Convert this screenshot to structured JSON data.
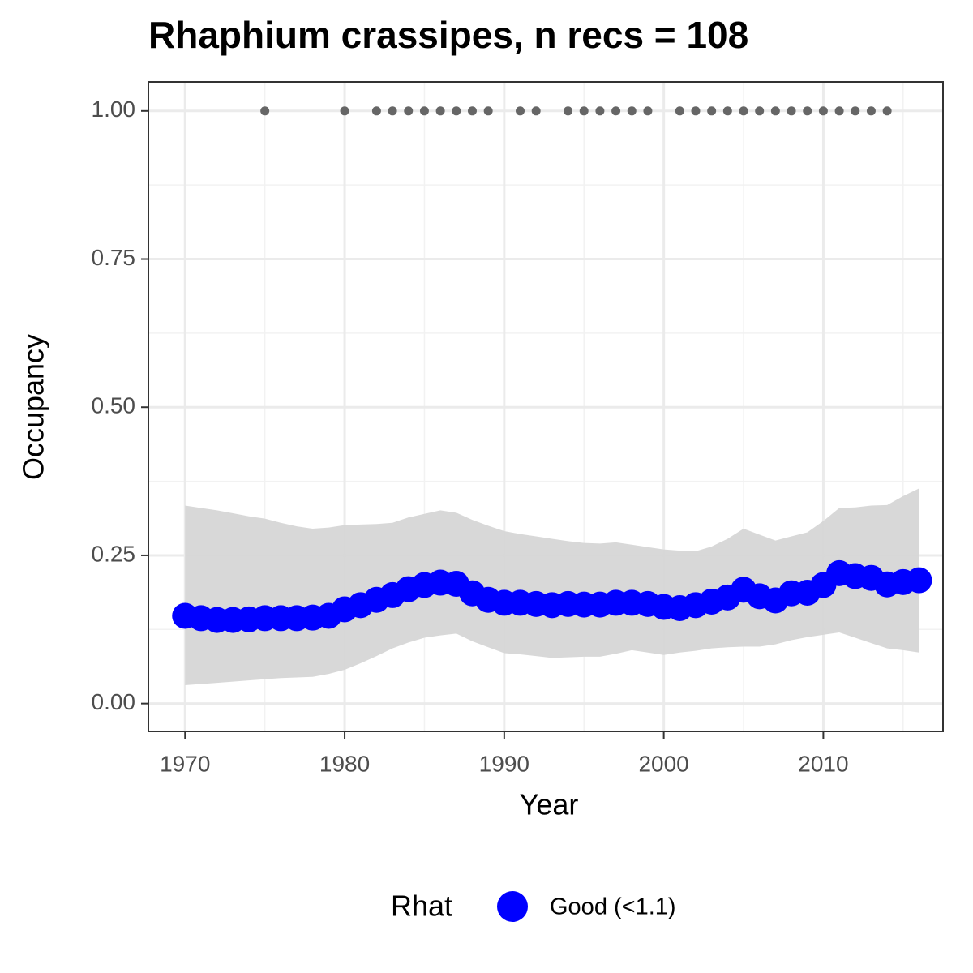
{
  "chart_data": {
    "type": "line",
    "title": "Rhaphium crassipes, n recs = 108",
    "x_label": "Year",
    "y_label": "Occupancy",
    "x": [
      1970,
      1971,
      1972,
      1973,
      1974,
      1975,
      1976,
      1977,
      1978,
      1979,
      1980,
      1981,
      1982,
      1983,
      1984,
      1985,
      1986,
      1987,
      1988,
      1989,
      1990,
      1991,
      1992,
      1993,
      1994,
      1995,
      1996,
      1997,
      1998,
      1999,
      2000,
      2001,
      2002,
      2003,
      2004,
      2005,
      2006,
      2007,
      2008,
      2009,
      2010,
      2011,
      2012,
      2013,
      2014,
      2015,
      2016
    ],
    "series": [
      {
        "name": "Good (<1.1)",
        "color": "#0000ff",
        "values": [
          0.148,
          0.144,
          0.141,
          0.141,
          0.142,
          0.144,
          0.144,
          0.144,
          0.145,
          0.148,
          0.159,
          0.166,
          0.175,
          0.183,
          0.193,
          0.2,
          0.204,
          0.202,
          0.186,
          0.175,
          0.17,
          0.17,
          0.168,
          0.166,
          0.168,
          0.167,
          0.167,
          0.17,
          0.17,
          0.168,
          0.163,
          0.161,
          0.166,
          0.172,
          0.179,
          0.192,
          0.181,
          0.174,
          0.186,
          0.187,
          0.2,
          0.22,
          0.215,
          0.212,
          0.201,
          0.205,
          0.208
        ]
      }
    ],
    "band": {
      "color": "#d6d6d6",
      "upper": [
        0.334,
        0.33,
        0.326,
        0.321,
        0.316,
        0.312,
        0.305,
        0.299,
        0.295,
        0.297,
        0.301,
        0.302,
        0.303,
        0.305,
        0.314,
        0.32,
        0.326,
        0.322,
        0.31,
        0.3,
        0.291,
        0.286,
        0.282,
        0.278,
        0.274,
        0.271,
        0.27,
        0.272,
        0.268,
        0.264,
        0.26,
        0.258,
        0.257,
        0.265,
        0.278,
        0.295,
        0.285,
        0.275,
        0.282,
        0.289,
        0.308,
        0.33,
        0.331,
        0.334,
        0.335,
        0.35,
        0.363
      ],
      "lower": [
        0.031,
        0.033,
        0.035,
        0.037,
        0.039,
        0.041,
        0.043,
        0.044,
        0.045,
        0.05,
        0.057,
        0.068,
        0.08,
        0.093,
        0.103,
        0.111,
        0.115,
        0.118,
        0.105,
        0.095,
        0.085,
        0.083,
        0.08,
        0.077,
        0.078,
        0.079,
        0.079,
        0.084,
        0.09,
        0.086,
        0.082,
        0.086,
        0.089,
        0.093,
        0.095,
        0.096,
        0.096,
        0.1,
        0.107,
        0.112,
        0.116,
        0.12,
        0.111,
        0.102,
        0.093,
        0.09,
        0.086
      ]
    },
    "records": {
      "color": "#666666",
      "value": 1,
      "x": [
        1975,
        1980,
        1982,
        1983,
        1984,
        1985,
        1986,
        1987,
        1988,
        1989,
        1991,
        1992,
        1994,
        1995,
        1996,
        1997,
        1998,
        1999,
        2001,
        2002,
        2003,
        2004,
        2005,
        2006,
        2007,
        2008,
        2009,
        2010,
        2011,
        2012,
        2013,
        2014
      ]
    },
    "xlim": [
      1967.7,
      2017.5
    ],
    "ylim": [
      -0.047,
      1.049
    ],
    "xticks": [
      1970,
      1980,
      1990,
      2000,
      2010
    ],
    "yticks": [
      {
        "value": 0,
        "label": "0.00"
      },
      {
        "value": 0.25,
        "label": "0.25"
      },
      {
        "value": 0.5,
        "label": "0.50"
      },
      {
        "value": 0.75,
        "label": "0.75"
      },
      {
        "value": 1,
        "label": "1.00"
      }
    ],
    "x_minor_ticks": [
      1975,
      1985,
      1995,
      2005,
      2015
    ],
    "y_minor_ticks": [
      0.125,
      0.375,
      0.625,
      0.875
    ],
    "grid": true,
    "legend_title": "Rhat",
    "legend_position": "bottom"
  }
}
